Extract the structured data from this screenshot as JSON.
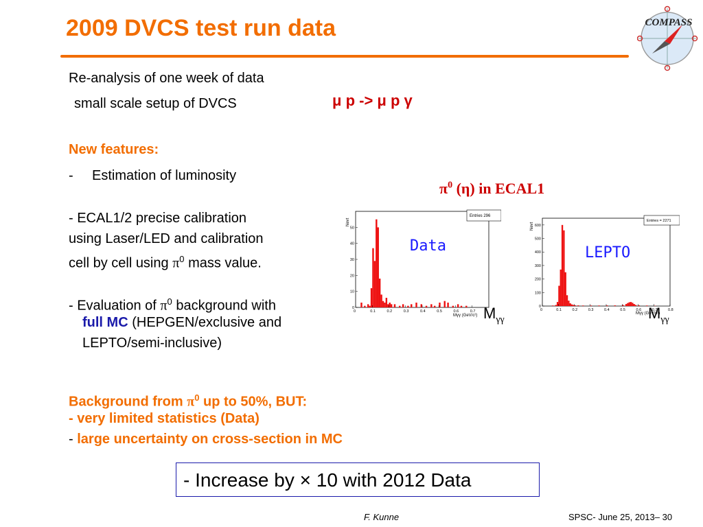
{
  "slide": {
    "title": "2009 DVCS test run data",
    "logo_text": "COMPASS",
    "intro": {
      "line1": "Re-analysis of one week of data",
      "line2": "small scale setup of DVCS",
      "formula": "μ p  -> μ p γ"
    },
    "features": {
      "heading": "New features:",
      "item1_dash": "-",
      "item1": "Estimation of luminosity",
      "item2_line1": "-  ECAL1/2 precise calibration",
      "item2_line2": "using  Laser/LED and calibration",
      "item2_line3_pre": "cell by cell using ",
      "item2_line3_pi": "π",
      "item2_line3_sup": "0",
      "item2_line3_post": " mass value.",
      "item3_line1_pre": "-  Evaluation of ",
      "item3_line1_pi": "π",
      "item3_line1_sup": "0",
      "item3_line1_post": " background with",
      "item3_line2_bold": "full MC",
      "item3_line2_rest": " (HEPGEN/exclusive and",
      "item3_line3": "LEPTO/semi-inclusive)"
    },
    "plots_label": {
      "pi": "π",
      "sup": "0",
      "eta": " (η)",
      "rest": " in ECAL1"
    },
    "background": {
      "line1_pre": "Background from  ",
      "line1_pi": "π",
      "line1_sup": "0",
      "line1_post": " up to 50%, BUT:",
      "line2": "- very limited statistics (Data)",
      "line3_dash": "-",
      "line3": " large uncertainty  on cross-section in MC"
    },
    "boxed_text": "- Increase by × 10 with 2012 Data",
    "footer": {
      "author": "F. Kunne",
      "event": "SPSC- June 25, 2013",
      "page": "– 30"
    }
  },
  "charts": {
    "data_label": "Data",
    "lepto_label": "LEPTO",
    "mgg_M": "M",
    "mgg_sub": "γγ",
    "mgg_small": "Mγγ (GeV/c²)",
    "yaxis_title": "Nevt"
  },
  "chart_data": [
    {
      "type": "bar",
      "title": "",
      "stats_box": "Entries    296",
      "xlabel": "Mγγ (GeV/c²)",
      "ylabel": "Nevt",
      "xlim": [
        0,
        0.8
      ],
      "ylim": [
        0,
        60
      ],
      "xticks": [
        "0",
        "0.1",
        "0.2",
        "0.3",
        "0.4",
        "0.5",
        "0.6",
        "0.7"
      ],
      "yticks": [
        "0",
        "10",
        "20",
        "30",
        "40",
        "50"
      ],
      "bin_width": 0.01,
      "x": [
        0.03,
        0.05,
        0.07,
        0.08,
        0.09,
        0.1,
        0.11,
        0.12,
        0.13,
        0.14,
        0.15,
        0.16,
        0.17,
        0.18,
        0.19,
        0.2,
        0.21,
        0.23,
        0.26,
        0.28,
        0.31,
        0.33,
        0.36,
        0.39,
        0.42,
        0.45,
        0.47,
        0.5,
        0.53,
        0.55,
        0.58,
        0.61,
        0.63,
        0.66
      ],
      "values": [
        3,
        1,
        2,
        1,
        12,
        37,
        29,
        55,
        50,
        18,
        8,
        4,
        3,
        6,
        2,
        3,
        2,
        2,
        1,
        2,
        1,
        2,
        3,
        2,
        1,
        2,
        1,
        3,
        4,
        3,
        1,
        2,
        1,
        1
      ],
      "color": "#ee1111"
    },
    {
      "type": "bar",
      "title": "",
      "stats_box": "Entries = 2271",
      "xlabel": "Mγγ (GeV/c²)",
      "ylabel": "Nevt",
      "xlim": [
        0,
        0.8
      ],
      "ylim": [
        0,
        650
      ],
      "xticks": [
        "0",
        "0.1",
        "0.2",
        "0.3",
        "0.4",
        "0.5",
        "0.6",
        "0.7",
        "0.8"
      ],
      "yticks": [
        "0",
        "100",
        "200",
        "300",
        "400",
        "500",
        "600"
      ],
      "bin_width": 0.01,
      "x": [
        0.06,
        0.08,
        0.09,
        0.1,
        0.11,
        0.12,
        0.13,
        0.14,
        0.15,
        0.16,
        0.17,
        0.18,
        0.19,
        0.2,
        0.22,
        0.25,
        0.3,
        0.35,
        0.4,
        0.45,
        0.5,
        0.52,
        0.53,
        0.54,
        0.55,
        0.56,
        0.57,
        0.58,
        0.6,
        0.65,
        0.7
      ],
      "values": [
        4,
        8,
        30,
        150,
        270,
        600,
        560,
        250,
        80,
        40,
        20,
        12,
        8,
        6,
        5,
        4,
        4,
        4,
        5,
        5,
        8,
        15,
        22,
        28,
        30,
        24,
        15,
        8,
        6,
        4,
        2
      ],
      "color": "#ee1111"
    }
  ],
  "colors": {
    "accent": "#f26d00",
    "formula": "#cc0000",
    "annotation": "#1a1aff",
    "histogram": "#ee1111",
    "box_border": "#1a1aaa"
  }
}
